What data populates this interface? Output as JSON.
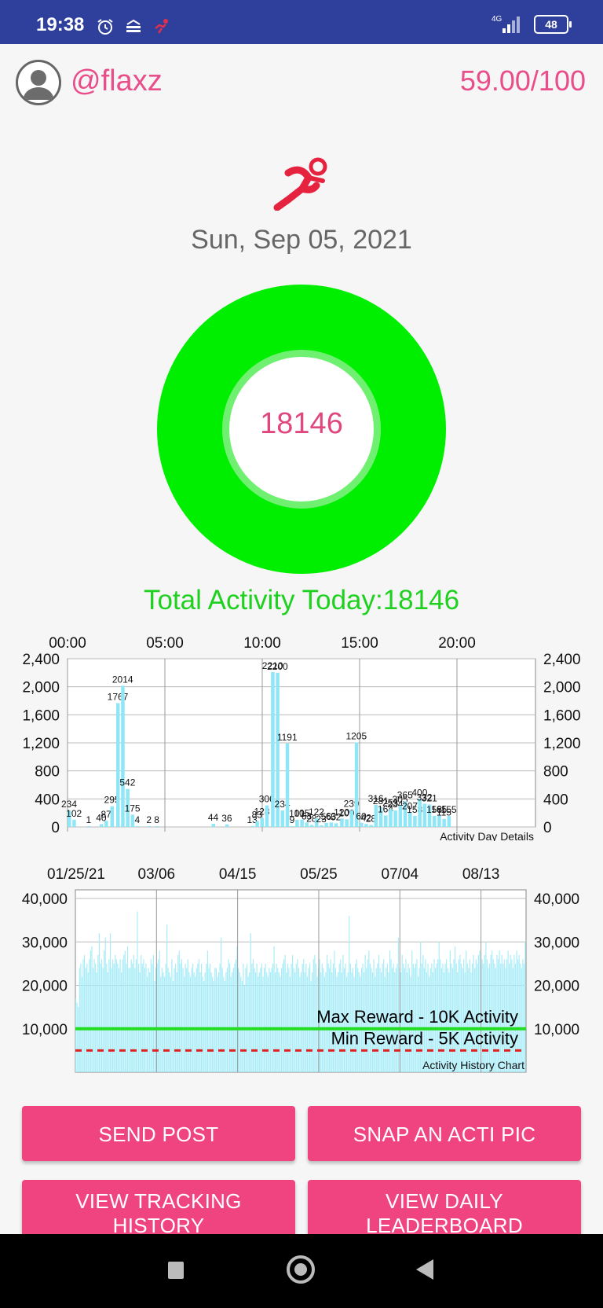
{
  "status_bar": {
    "time": "19:38",
    "network": "4G",
    "battery": "48"
  },
  "header": {
    "username": "@flaxz",
    "score": "59.00/100"
  },
  "date": "Sun, Sep 05, 2021",
  "ring": {
    "value": "18146"
  },
  "total_activity": "Total Activity Today:18146",
  "colors": {
    "accent": "#e94e8a",
    "ring": "#00ee00",
    "bars": "#8fe6f6",
    "button": "#f04480",
    "max_line": "#22dd22",
    "min_line": "#dd2222"
  },
  "day_chart": {
    "type": "bar",
    "caption": "Activity Day Details",
    "x_ticks": [
      "00:00",
      "05:00",
      "10:00",
      "15:00",
      "20:00"
    ],
    "y_ticks": [
      "2,400",
      "2,000",
      "1,600",
      "1,200",
      "800",
      "400",
      "0"
    ],
    "ylim": [
      0,
      2400
    ],
    "bars": [
      {
        "x": 0.0,
        "value": 234,
        "label": "234"
      },
      {
        "x": 0.25,
        "value": 102,
        "label": "102"
      },
      {
        "x": 1.0,
        "value": 1,
        "label": "1"
      },
      {
        "x": 1.65,
        "value": 40,
        "label": "40"
      },
      {
        "x": 1.9,
        "value": 87,
        "label": "87"
      },
      {
        "x": 2.2,
        "value": 295,
        "label": "295"
      },
      {
        "x": 2.5,
        "value": 1767,
        "label": "1767"
      },
      {
        "x": 2.75,
        "value": 2014,
        "label": "2014"
      },
      {
        "x": 3.0,
        "value": 542,
        "label": "542"
      },
      {
        "x": 3.25,
        "value": 175,
        "label": "175"
      },
      {
        "x": 3.5,
        "value": 4,
        "label": "4"
      },
      {
        "x": 4.1,
        "value": 2,
        "label": "2"
      },
      {
        "x": 4.5,
        "value": 8,
        "label": "8"
      },
      {
        "x": 7.4,
        "value": 44,
        "label": "44"
      },
      {
        "x": 8.1,
        "value": 36,
        "label": "36"
      },
      {
        "x": 9.4,
        "value": 13,
        "label": "13"
      },
      {
        "x": 9.65,
        "value": 83,
        "label": "83"
      },
      {
        "x": 9.9,
        "value": 128,
        "label": "128"
      },
      {
        "x": 10.15,
        "value": 306,
        "label": "306"
      },
      {
        "x": 10.45,
        "value": 2210,
        "label": "2210"
      },
      {
        "x": 10.7,
        "value": 2200,
        "label": "2200"
      },
      {
        "x": 10.95,
        "value": 234,
        "label": "234"
      },
      {
        "x": 11.2,
        "value": 1191,
        "label": "1191"
      },
      {
        "x": 11.45,
        "value": 9,
        "label": "9"
      },
      {
        "x": 11.7,
        "value": 101,
        "label": "101"
      },
      {
        "x": 11.95,
        "value": 105,
        "label": "105"
      },
      {
        "x": 12.2,
        "value": 63,
        "label": "63"
      },
      {
        "x": 12.45,
        "value": 28,
        "label": "28"
      },
      {
        "x": 12.7,
        "value": 122,
        "label": "122"
      },
      {
        "x": 12.95,
        "value": 23,
        "label": "23"
      },
      {
        "x": 13.2,
        "value": 56,
        "label": "56"
      },
      {
        "x": 13.45,
        "value": 63,
        "label": "63"
      },
      {
        "x": 13.7,
        "value": 52,
        "label": "52"
      },
      {
        "x": 14.0,
        "value": 120,
        "label": "120"
      },
      {
        "x": 14.25,
        "value": 109,
        "label": "109"
      },
      {
        "x": 14.5,
        "value": 239,
        "label": "239"
      },
      {
        "x": 14.75,
        "value": 1205,
        "label": "1205"
      },
      {
        "x": 15.0,
        "value": 60,
        "label": "60"
      },
      {
        "x": 15.25,
        "value": 42,
        "label": "42"
      },
      {
        "x": 15.5,
        "value": 28,
        "label": "28"
      },
      {
        "x": 15.75,
        "value": 316,
        "label": "316"
      },
      {
        "x": 16.0,
        "value": 281,
        "label": "281"
      },
      {
        "x": 16.25,
        "value": 164,
        "label": "164"
      },
      {
        "x": 16.5,
        "value": 253,
        "label": "253"
      },
      {
        "x": 16.75,
        "value": 234,
        "label": "234"
      },
      {
        "x": 17.0,
        "value": 305,
        "label": "305"
      },
      {
        "x": 17.25,
        "value": 365,
        "label": "365"
      },
      {
        "x": 17.5,
        "value": 207,
        "label": "207"
      },
      {
        "x": 17.75,
        "value": 158,
        "label": "158"
      },
      {
        "x": 18.0,
        "value": 400,
        "label": "400"
      },
      {
        "x": 18.25,
        "value": 332,
        "label": "332"
      },
      {
        "x": 18.5,
        "value": 321,
        "label": "321"
      },
      {
        "x": 18.75,
        "value": 158,
        "label": "158"
      },
      {
        "x": 19.0,
        "value": 165,
        "label": "165"
      },
      {
        "x": 19.25,
        "value": 115,
        "label": "115"
      },
      {
        "x": 19.5,
        "value": 155,
        "label": "155"
      }
    ]
  },
  "history_chart": {
    "type": "bar",
    "caption": "Activity History Chart",
    "x_ticks": [
      "01/25/21",
      "03/06",
      "04/15",
      "05/25",
      "07/04",
      "08/13"
    ],
    "y_ticks": [
      "40,000",
      "30,000",
      "20,000",
      "10,000"
    ],
    "ylim": [
      0,
      40000
    ],
    "max_line": {
      "value": 10000,
      "label": "Max Reward - 10K Activity"
    },
    "min_line": {
      "value": 5000,
      "label": "Min Reward - 5K Activity"
    },
    "values": [
      17000,
      16000,
      15000,
      24000,
      25000,
      22000,
      26000,
      27000,
      24000,
      25000,
      23000,
      26000,
      28000,
      29000,
      24000,
      26000,
      25000,
      23000,
      27000,
      32000,
      25000,
      26000,
      24000,
      28000,
      31000,
      25000,
      23000,
      26000,
      32000,
      24000,
      26000,
      25000,
      27000,
      26000,
      25000,
      24000,
      26000,
      23000,
      26000,
      27000,
      28000,
      25000,
      29000,
      24000,
      24000,
      26000,
      25000,
      27000,
      24000,
      26000,
      37000,
      25000,
      23000,
      27000,
      25000,
      26000,
      24000,
      25000,
      22000,
      24000,
      23000,
      26000,
      25000,
      27000,
      21000,
      24000,
      25000,
      26000,
      28000,
      22000,
      24000,
      23000,
      22000,
      25000,
      34000,
      24000,
      23000,
      22000,
      26000,
      21000,
      24000,
      25000,
      23000,
      27000,
      28000,
      25000,
      26000,
      24000,
      22000,
      25000,
      24000,
      26000,
      23000,
      22000,
      24000,
      25000,
      23000,
      22000,
      24000,
      25000,
      26000,
      23000,
      25000,
      22000,
      21000,
      23000,
      25000,
      28000,
      24000,
      25000,
      23000,
      22000,
      21000,
      24000,
      24000,
      22000,
      23000,
      25000,
      31000,
      24000,
      22000,
      21000,
      23000,
      24000,
      26000,
      25000,
      22000,
      23000,
      24000,
      25000,
      26000,
      29000,
      24000,
      23000,
      22000,
      21000,
      25000,
      20000,
      24000,
      25000,
      22000,
      23000,
      32000,
      25000,
      26000,
      24000,
      23000,
      25000,
      22000,
      23000,
      24000,
      25000,
      22000,
      24000,
      25000,
      23000,
      22000,
      24000,
      23000,
      24000,
      25000,
      29000,
      23000,
      25000,
      24000,
      23000,
      22000,
      24000,
      25000,
      26000,
      27000,
      23000,
      25000,
      24000,
      22000,
      25000,
      27000,
      24000,
      23000,
      25000,
      26000,
      24000,
      22000,
      23000,
      25000,
      26000,
      23000,
      25000,
      22000,
      24000,
      25000,
      21000,
      23000,
      26000,
      27000,
      25000,
      22000,
      24000,
      26000,
      23000,
      25000,
      24000,
      22000,
      23000,
      27000,
      25000,
      24000,
      26000,
      23000,
      25000,
      28000,
      24000,
      22000,
      23000,
      25000,
      26000,
      23000,
      27000,
      24000,
      25000,
      22000,
      23000,
      36000,
      25000,
      23000,
      24000,
      22000,
      25000,
      26000,
      24000,
      23000,
      22000,
      24000,
      25000,
      23000,
      27000,
      24000,
      26000,
      28000,
      25000,
      24000,
      23000,
      26000,
      22000,
      24000,
      25000,
      27000,
      24000,
      23000,
      25000,
      26000,
      22000,
      24000,
      25000,
      23000,
      28000,
      26000,
      24000,
      25000,
      23000,
      24000,
      25000,
      31000,
      24000,
      23000,
      27000,
      25000,
      24000,
      26000,
      23000,
      25000,
      24000,
      22000,
      28000,
      25000,
      24000,
      25000,
      26000,
      22000,
      24000,
      30000,
      25000,
      27000,
      24000,
      26000,
      23000,
      25000,
      22000,
      24000,
      25000,
      23000,
      26000,
      24000,
      25000,
      26000,
      30000,
      26000,
      24000,
      25000,
      23000,
      25000,
      26000,
      24000,
      23000,
      28000,
      25000,
      24000,
      26000,
      29000,
      25000,
      23000,
      26000,
      27000,
      25000,
      24000,
      26000,
      23000,
      28000,
      25000,
      24000,
      26000,
      23000,
      25000,
      27000,
      24000,
      26000,
      25000,
      27000,
      28000,
      25000,
      26000,
      25000,
      27000,
      30000,
      26000,
      24000,
      25000,
      27000,
      28000,
      26000,
      25000,
      24000,
      27000,
      26000,
      28000,
      25000,
      27000,
      25000,
      26000,
      24000,
      26000,
      28000,
      25000,
      27000,
      26000,
      24000,
      27000,
      25000,
      28000,
      26000,
      27000,
      25000,
      24000,
      26000,
      25000,
      30000
    ]
  },
  "buttons": {
    "send_post": "SEND POST",
    "snap_pic": "SNAP AN ACTI PIC",
    "tracking_line1": "VIEW TRACKING",
    "tracking_line2": "HISTORY",
    "leaderboard_line1": "VIEW DAILY",
    "leaderboard_line2": "LEADERBOARD"
  }
}
